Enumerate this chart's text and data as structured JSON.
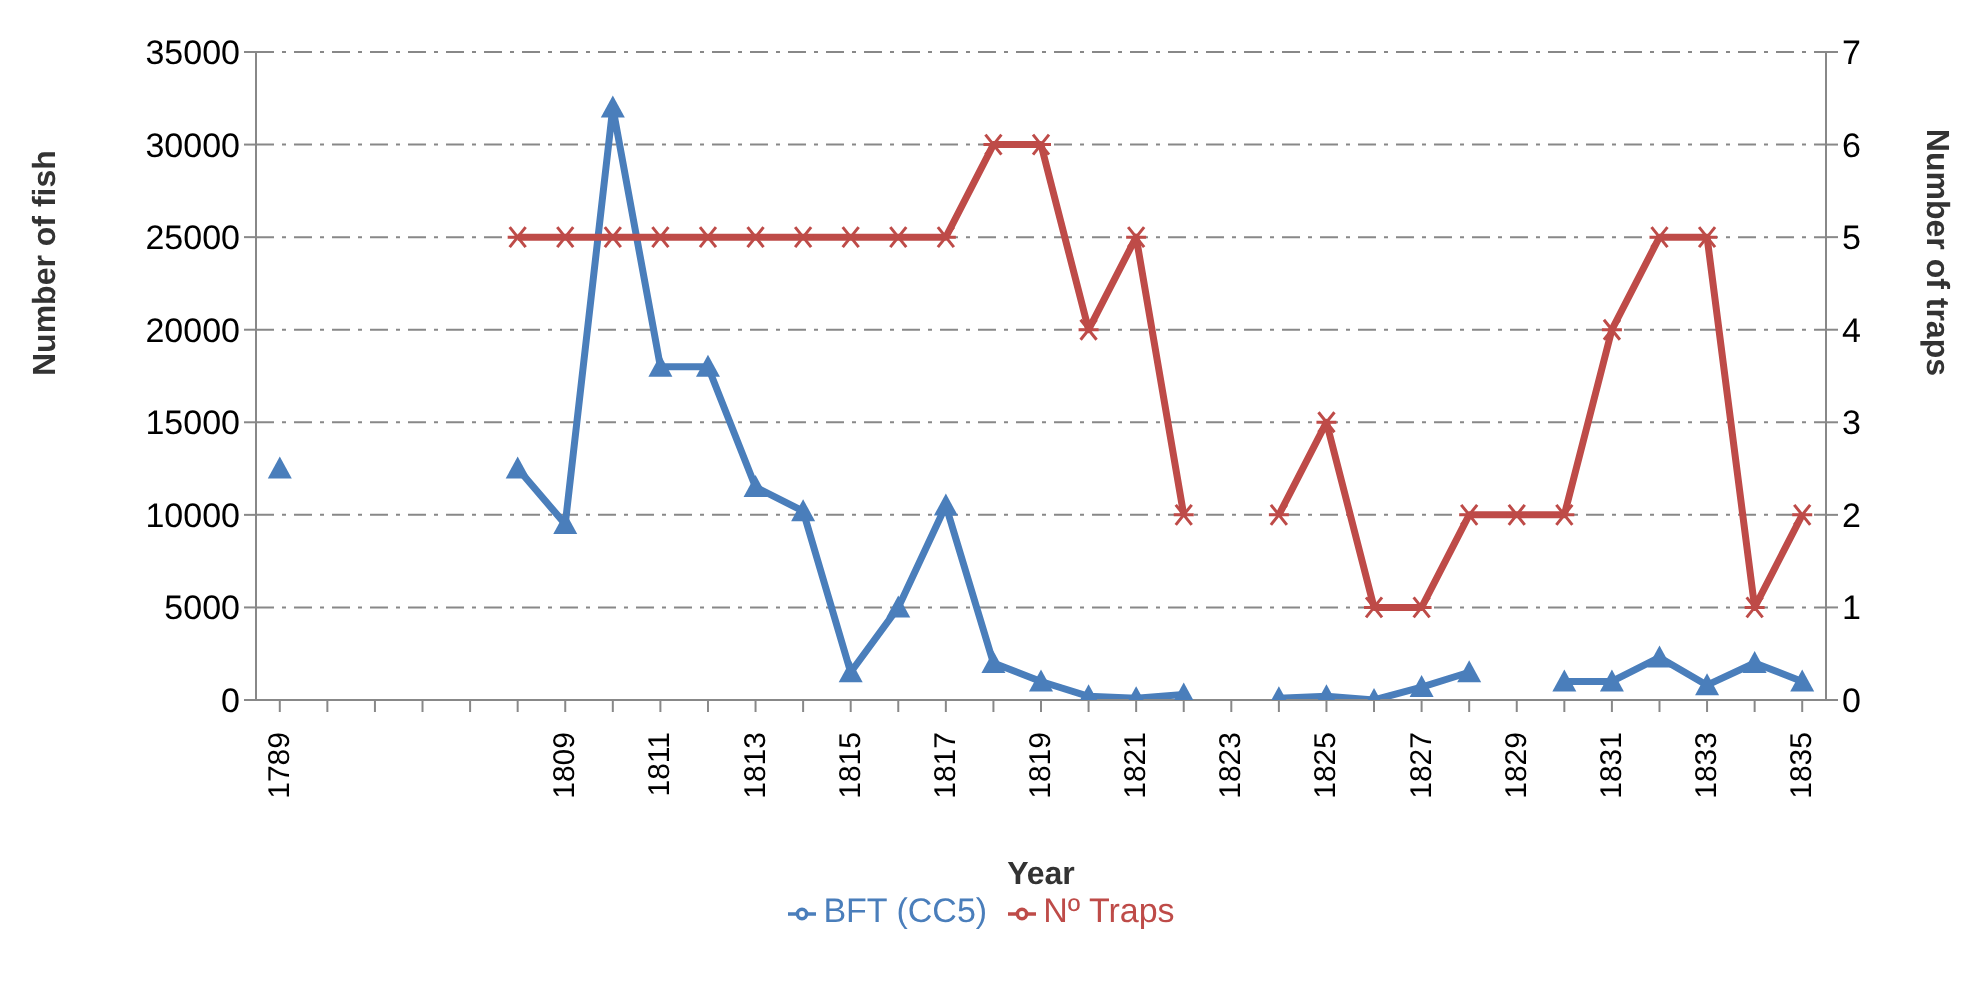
{
  "chart_data": {
    "type": "line",
    "xlabel": "Year",
    "ylabel": "Number of fish",
    "y2label": "Number of traps",
    "categories": [
      "1789",
      null,
      null,
      null,
      null,
      null,
      "1809",
      null,
      "1811",
      null,
      "1813",
      null,
      "1815",
      null,
      "1817",
      null,
      "1819",
      null,
      "1821",
      null,
      "1823",
      null,
      "1825",
      null,
      "1827",
      null,
      "1829",
      null,
      "1831",
      null,
      "1833",
      null,
      "1835"
    ],
    "series": [
      {
        "name": "BFT (CC5)",
        "color": "#4a7ebb",
        "marker": "triangle",
        "values": [
          12500,
          null,
          null,
          null,
          null,
          12500,
          9500,
          32000,
          18000,
          18000,
          11500,
          10200,
          1500,
          5000,
          10500,
          2000,
          1000,
          200,
          100,
          300,
          null,
          100,
          200,
          0,
          700,
          1500,
          null,
          1000,
          1000,
          2300,
          800,
          2000,
          1000
        ]
      },
      {
        "name": "Nº Traps",
        "color": "#be4b48",
        "marker": "cross",
        "axis": "y2",
        "values": [
          null,
          null,
          null,
          null,
          null,
          5,
          5,
          5,
          5,
          5,
          5,
          5,
          5,
          5,
          5,
          6,
          6,
          4,
          5,
          2,
          null,
          2,
          3,
          1,
          1,
          2,
          2,
          2,
          4,
          5,
          5,
          1,
          2
        ]
      }
    ],
    "ylim": [
      0,
      35000
    ],
    "yticks": [
      0,
      5000,
      10000,
      15000,
      20000,
      25000,
      30000,
      35000
    ],
    "y2lim": [
      0,
      7
    ],
    "y2ticks": [
      0,
      1,
      2,
      3,
      4,
      5,
      6,
      7
    ],
    "grid": "y",
    "legend": "bottom",
    "line_style": "solid"
  }
}
